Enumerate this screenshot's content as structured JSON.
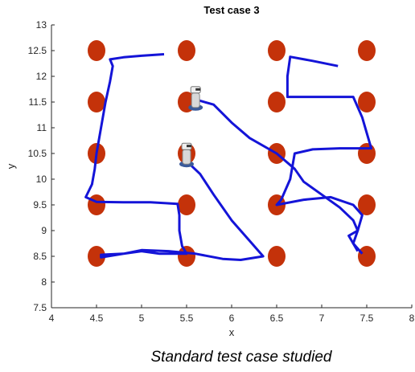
{
  "chart_data": {
    "type": "line",
    "title": "Test case 3",
    "x_label": "x",
    "y_label": "y",
    "caption": "Standard test case studied",
    "xlim": [
      4,
      8
    ],
    "ylim": [
      7.5,
      13
    ],
    "xticks": [
      4,
      4.5,
      5,
      5.5,
      6,
      6.5,
      7,
      7.5,
      8
    ],
    "yticks": [
      7.5,
      8,
      8.5,
      9,
      9.5,
      10,
      10.5,
      11,
      11.5,
      12,
      12.5,
      13
    ],
    "obstacles": {
      "color": "#c4320a",
      "x": [
        4.5,
        5.5,
        6.5,
        7.5,
        4.5,
        5.5,
        6.5,
        7.5,
        4.5,
        5.5,
        6.5,
        7.5,
        4.5,
        5.5,
        6.5,
        7.5,
        4.5,
        5.5,
        6.5,
        7.5
      ],
      "y": [
        12.5,
        12.5,
        12.5,
        12.5,
        11.5,
        11.5,
        11.5,
        11.5,
        10.5,
        10.5,
        10.5,
        10.5,
        9.5,
        9.5,
        9.5,
        9.5,
        8.5,
        8.5,
        8.5,
        8.5
      ]
    },
    "robots": {
      "x": [
        5.6,
        5.5
      ],
      "y": [
        11.55,
        10.45
      ]
    },
    "series": [
      {
        "color": "#1414d8",
        "x": [
          5.25,
          5.0,
          4.8,
          4.65,
          4.68,
          4.65,
          4.6,
          4.55,
          4.5,
          4.48,
          4.45,
          4.38,
          4.5,
          4.8,
          5.1,
          5.4,
          5.42,
          5.42,
          5.45,
          5.5,
          5.2,
          5.0,
          4.8,
          4.55,
          4.55,
          4.8,
          5.0,
          5.3,
          5.6,
          5.9,
          6.1,
          6.35,
          6.2,
          6.0,
          5.8,
          5.65,
          5.5
        ],
        "y": [
          12.43,
          12.4,
          12.37,
          12.33,
          12.2,
          11.9,
          11.5,
          11.0,
          10.5,
          10.2,
          9.9,
          9.65,
          9.56,
          9.55,
          9.55,
          9.52,
          9.3,
          9.0,
          8.7,
          8.55,
          8.55,
          8.6,
          8.55,
          8.53,
          8.48,
          8.55,
          8.62,
          8.6,
          8.55,
          8.45,
          8.43,
          8.5,
          8.8,
          9.2,
          9.7,
          10.1,
          10.35
        ]
      },
      {
        "color": "#1414d8",
        "x": [
          5.6,
          5.8,
          6.0,
          6.2,
          6.5,
          6.7,
          6.8,
          7.0,
          7.2,
          7.35,
          7.4,
          7.35,
          7.45
        ],
        "y": [
          11.55,
          11.45,
          11.1,
          10.8,
          10.5,
          10.2,
          9.95,
          9.7,
          9.45,
          9.2,
          9.0,
          8.75,
          8.55
        ]
      },
      {
        "color": "#1414d8",
        "x": [
          7.18,
          6.9,
          6.65,
          6.62,
          6.62,
          7.0,
          7.35,
          7.45,
          7.5,
          7.55,
          7.2,
          6.9,
          6.7,
          6.65,
          6.55,
          6.5,
          6.8,
          7.1,
          7.35,
          7.45,
          7.4,
          7.3,
          7.4
        ],
        "y": [
          12.2,
          12.3,
          12.38,
          12.0,
          11.6,
          11.6,
          11.6,
          11.2,
          10.9,
          10.6,
          10.6,
          10.58,
          10.5,
          10.0,
          9.6,
          9.5,
          9.6,
          9.65,
          9.5,
          9.3,
          9.0,
          8.9,
          8.6
        ]
      }
    ]
  }
}
